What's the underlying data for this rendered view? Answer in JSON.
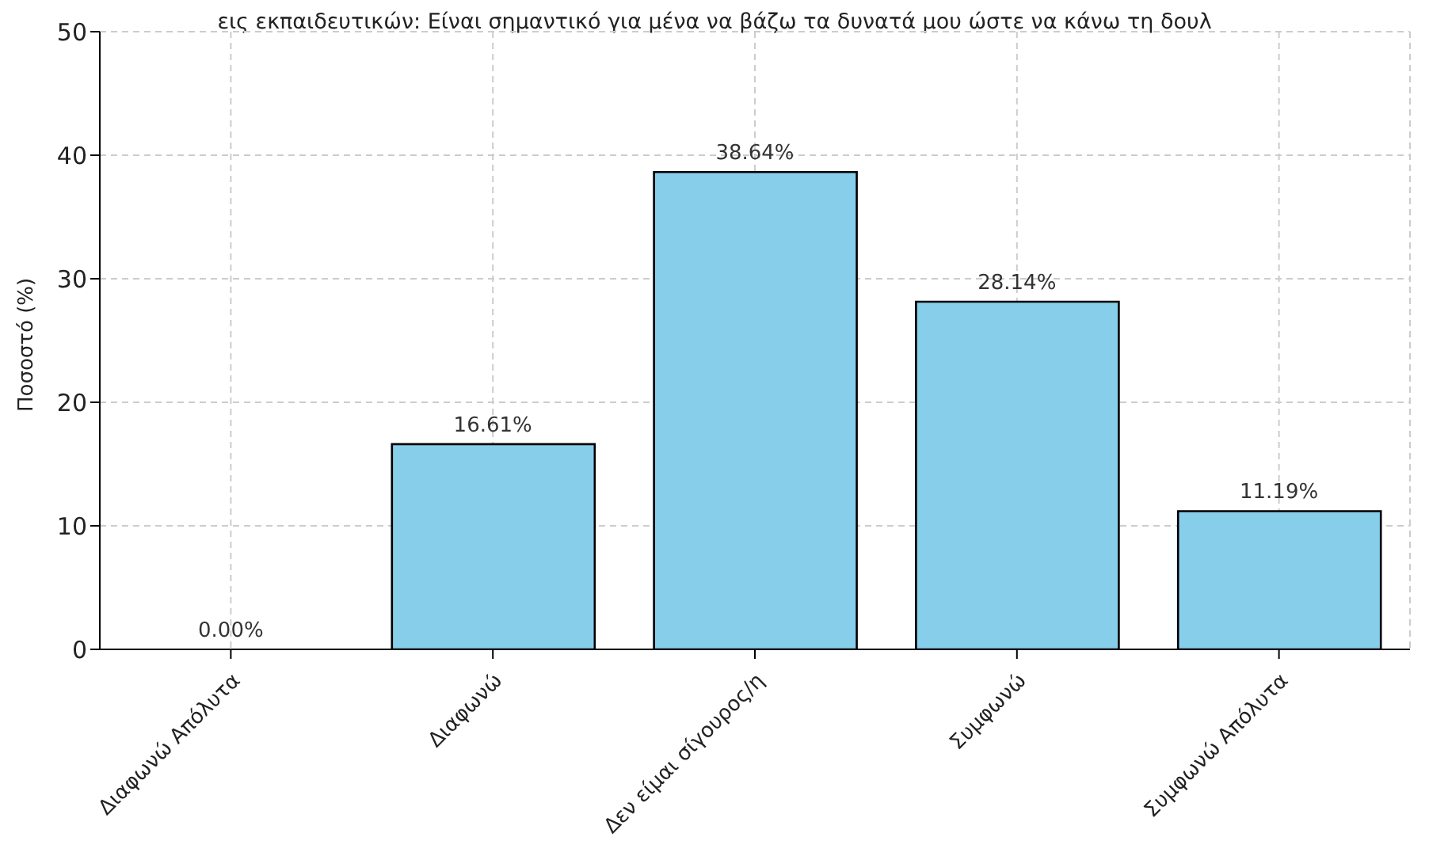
{
  "chart_data": {
    "type": "bar",
    "title": "εις εκπαιδευτικών: Είναι σημαντικό για μένα να βάζω τα δυνατά μου ώστε να κάνω τη δουλ",
    "ylabel": "Ποσοστό (%)",
    "categories": [
      "Διαφωνώ Απόλυτα",
      "Διαφωνώ",
      "Δεν είμαι σίγουρος/η",
      "Συμφωνώ",
      "Συμφωνώ Απόλυτα"
    ],
    "values": [
      0,
      16.61,
      38.64,
      28.14,
      11.19
    ],
    "value_labels": [
      "0.00%",
      "16.61%",
      "38.64%",
      "28.14%",
      "11.19%"
    ],
    "color": "#87ceeb",
    "ylim": [
      0,
      50
    ],
    "yticks": [
      0,
      10,
      20,
      30,
      40,
      50
    ],
    "grid": true
  }
}
